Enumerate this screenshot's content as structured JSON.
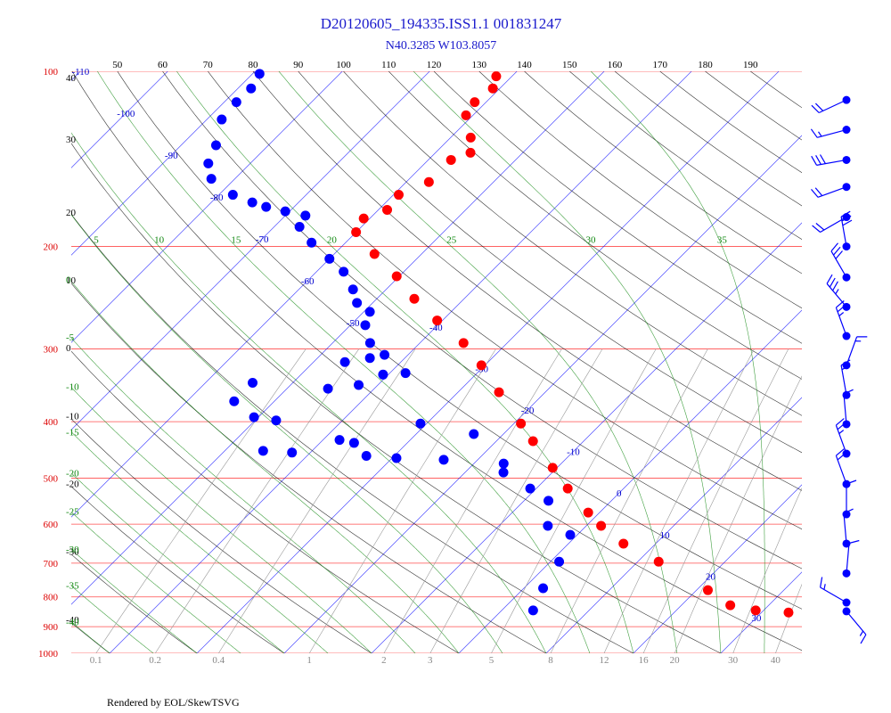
{
  "chart_data": {
    "type": "skewt",
    "title": "D20120605_194335.ISS1.1 001831247",
    "subtitle": "N40.3285 W103.8057",
    "footer": "Rendered by EOL/SkewTSVG",
    "log_y": true,
    "ylim": [
      1000,
      100
    ],
    "yticks": [
      100,
      200,
      300,
      400,
      500,
      600,
      700,
      800,
      900,
      1000
    ],
    "xlim": [
      -44.4,
      39.3
    ],
    "isotherms": [
      -110,
      -100,
      -90,
      -80,
      -70,
      -60,
      -50,
      -40,
      -30,
      -20,
      -10,
      0,
      10,
      20,
      30
    ],
    "dry_adiabats": [
      -40,
      -30,
      -20,
      -10,
      0,
      10,
      20,
      30,
      40,
      50,
      60,
      70,
      80,
      90,
      100,
      110,
      120,
      130,
      140,
      150,
      160,
      170,
      180,
      190
    ],
    "moist_adiabats": [
      -40,
      -35,
      -30,
      -25,
      -20,
      -15,
      -10,
      -5,
      0,
      5,
      10,
      15,
      20,
      25,
      30,
      35
    ],
    "mixing_ratios": [
      0.1,
      0.2,
      0.4,
      1,
      2,
      3,
      5,
      8,
      12,
      16,
      20,
      30,
      40
    ],
    "series": [
      {
        "color": "#ff0000",
        "pressure": [
          844,
          851,
          827,
          779,
          696,
          648,
          604,
          573,
          521,
          480,
          432,
          403,
          356,
          320,
          293,
          268,
          246,
          225,
          206,
          189,
          179,
          173,
          163,
          155,
          142,
          138,
          130,
          119,
          113,
          107,
          102
        ],
        "temperature": [
          29.1,
          33.1,
          25.6,
          21.3,
          12.4,
          6.3,
          1.7,
          -1.3,
          -6.4,
          -10.5,
          -15.8,
          -19.2,
          -25.3,
          -30.4,
          -35,
          -40.6,
          -45.7,
          -50.3,
          -55.4,
          -60,
          -60.7,
          -59,
          -59.4,
          -57.4,
          -57.4,
          -56,
          -57.7,
          -60.8,
          -61.3,
          -60.8,
          -61.8
        ]
      },
      {
        "color": "#0000ff",
        "pressure": [
          844,
          773,
          696,
          626,
          604,
          547,
          521,
          489,
          472,
          465,
          420,
          403,
          462,
          458,
          435,
          430,
          452,
          449,
          398,
          393,
          369,
          343,
          351,
          346,
          332,
          330,
          316,
          311,
          307,
          293,
          273,
          259,
          250,
          237,
          221,
          210,
          197,
          185,
          177,
          174,
          171,
          168,
          163,
          153,
          144,
          134,
          121,
          113,
          107,
          101
        ],
        "temperature": [
          3.6,
          2.2,
          1.0,
          -0.8,
          -4.4,
          -7.2,
          -10.7,
          -15.6,
          -16.6,
          -23.9,
          -23.4,
          -30.7,
          -29.5,
          -33.2,
          -36.1,
          -38.1,
          -42.1,
          -45.6,
          -47.6,
          -50.5,
          -54.6,
          -54.6,
          -45.3,
          -42.2,
          -40.6,
          -38.2,
          -46.4,
          -44,
          -42.7,
          -45.7,
          -48.3,
          -49.3,
          -51.8,
          -53.8,
          -56.9,
          -60,
          -63.9,
          -67.1,
          -67.7,
          -70.5,
          -73.2,
          -75.3,
          -78.4,
          -82.7,
          -84.8,
          -86,
          -88.3,
          -88.6,
          -88.5,
          -89.2
        ]
      }
    ],
    "winds": {
      "color": "#0000ff",
      "pressure": [
        112,
        126,
        142,
        158,
        178,
        200,
        226,
        254,
        285,
        320,
        360,
        404,
        454,
        512,
        577,
        648,
        729,
        818,
        847
      ],
      "direction": [
        245,
        255,
        260,
        250,
        240,
        350,
        330,
        320,
        340,
        20,
        350,
        355,
        340,
        340,
        360,
        355,
        5,
        300,
        140
      ],
      "speed": [
        20,
        15,
        30,
        20,
        20,
        30,
        30,
        35,
        25,
        15,
        15,
        15,
        25,
        20,
        10,
        10,
        10,
        15,
        15
      ]
    }
  }
}
